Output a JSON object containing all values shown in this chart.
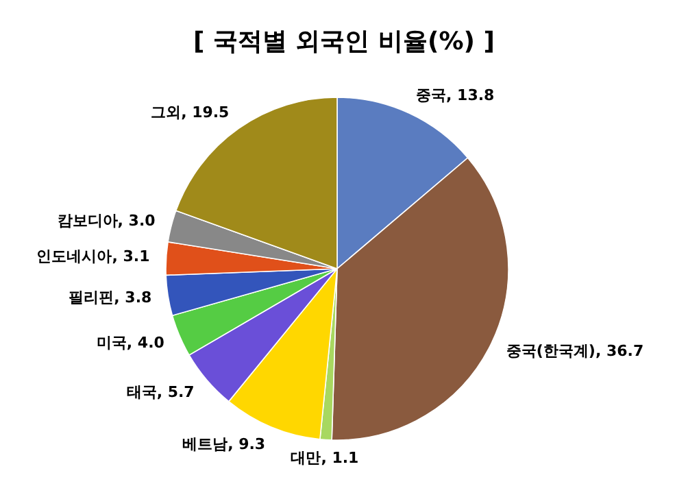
{
  "chart_data": {
    "type": "pie",
    "title": "[ 국적별 외국인 비율(%) ]",
    "categories": [
      "중국",
      "중국(한국계)",
      "대만",
      "베트남",
      "태국",
      "미국",
      "필리핀",
      "인도네시아",
      "캄보디아",
      "그외"
    ],
    "values": [
      13.8,
      36.7,
      1.1,
      9.3,
      5.7,
      4.0,
      3.8,
      3.1,
      3.0,
      19.5
    ],
    "colors": [
      "#5a7cc0",
      "#8a5a3e",
      "#a8d860",
      "#ffd700",
      "#6a4fd8",
      "#55cc44",
      "#3355bb",
      "#e0501a",
      "#888888",
      "#a08a1a"
    ],
    "value_labels": [
      "13.8",
      "36.7",
      "1.1",
      "9.3",
      "5.7",
      "4.0",
      "3.8",
      "3.1",
      "3.0",
      "19.5"
    ]
  }
}
